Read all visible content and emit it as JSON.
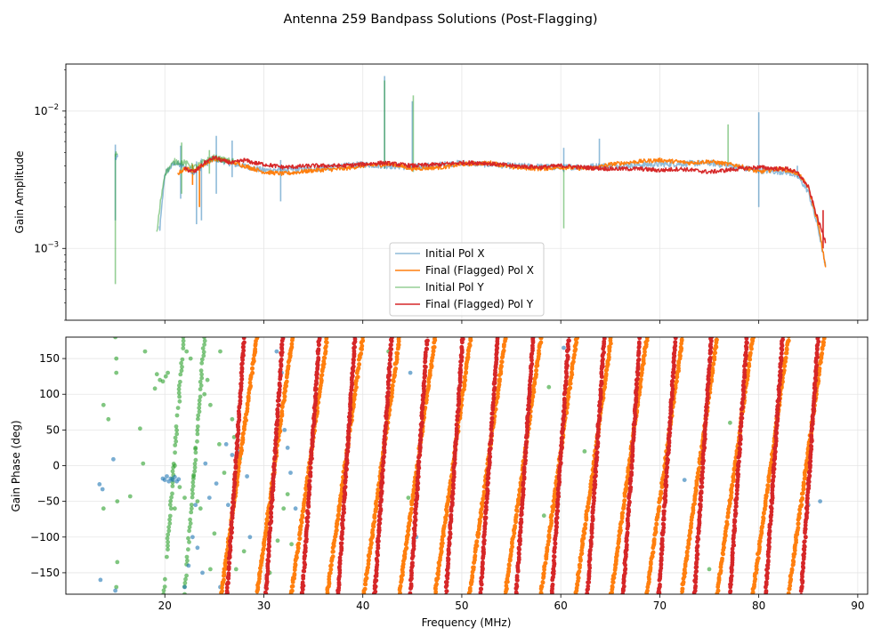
{
  "chart_data": {
    "type": "line",
    "title": "Antenna 259 Bandpass Solutions (Post-Flagging)",
    "xlabel": "Frequency (MHz)",
    "xlim": [
      10,
      91
    ],
    "xticks": [
      20,
      30,
      40,
      50,
      60,
      70,
      80,
      90
    ],
    "xtick_labels": [
      "20",
      "30",
      "40",
      "50",
      "60",
      "70",
      "80",
      "90"
    ],
    "colors": {
      "initial_x": "#1f77b4",
      "final_x": "#ff7f0e",
      "initial_y": "#2ca02c",
      "final_y": "#d62728"
    },
    "amplitude_panel": {
      "ylabel": "Gain Amplitude",
      "yscale": "log",
      "ylim": [
        0.0003,
        0.022
      ],
      "ytick_labels": [
        {
          "value": 0.001,
          "base": "10",
          "exponent": "−3"
        },
        {
          "value": 0.01,
          "base": "10",
          "exponent": "−2"
        }
      ],
      "legend": {
        "location": "lower-center",
        "entries": [
          "Initial Pol X",
          "Final (Flagged) Pol X",
          "Initial Pol Y",
          "Final (Flagged) Pol Y"
        ]
      },
      "series": [
        {
          "name": "Initial Pol X",
          "x": [
            15,
            15.2,
            19.5,
            20,
            21,
            22,
            23,
            24,
            25,
            26,
            27,
            28,
            30,
            35,
            40,
            45,
            50,
            55,
            60,
            65,
            70,
            75,
            80,
            83,
            84,
            85,
            86,
            86.8
          ],
          "y": [
            0.0045,
            0.0046,
            0.0014,
            0.0035,
            0.0042,
            0.0039,
            0.0036,
            0.0041,
            0.0045,
            0.0043,
            0.0041,
            0.004,
            0.0037,
            0.0038,
            0.0041,
            0.0039,
            0.0042,
            0.004,
            0.0039,
            0.004,
            0.0041,
            0.0042,
            0.0037,
            0.0036,
            0.0033,
            0.0026,
            0.0014,
            0.0007
          ],
          "spikes": [
            {
              "x": 15,
              "top": 0.0057,
              "bottom": 0.0016
            },
            {
              "x": 21.6,
              "top": 0.0056,
              "bottom": 0.0023
            },
            {
              "x": 23.2,
              "top": 0.0043,
              "bottom": 0.0015
            },
            {
              "x": 23.7,
              "top": 0.0045,
              "bottom": 0.0016
            },
            {
              "x": 25.2,
              "top": 0.0066,
              "bottom": 0.0025
            },
            {
              "x": 26.8,
              "top": 0.0061,
              "bottom": 0.0033
            },
            {
              "x": 31.7,
              "top": 0.0044,
              "bottom": 0.0022
            },
            {
              "x": 42.2,
              "top": 0.018,
              "bottom": 0.0038
            },
            {
              "x": 45.0,
              "top": 0.0118,
              "bottom": 0.0038
            },
            {
              "x": 60.3,
              "top": 0.0054,
              "bottom": 0.0036
            },
            {
              "x": 63.9,
              "top": 0.0063,
              "bottom": 0.0038
            },
            {
              "x": 80.0,
              "top": 0.0098,
              "bottom": 0.002
            },
            {
              "x": 83.9,
              "top": 0.004,
              "bottom": 0.0033
            }
          ]
        },
        {
          "name": "Final (Flagged) Pol X",
          "x": [
            21.3,
            22,
            23,
            24,
            25,
            26,
            27,
            28,
            29,
            30,
            32,
            35,
            38,
            40,
            43,
            45,
            48,
            50,
            53,
            55,
            58,
            60,
            63,
            65,
            68,
            70,
            73,
            75,
            78,
            80,
            82,
            83,
            84,
            85,
            86,
            86.8
          ],
          "y": [
            0.0035,
            0.0038,
            0.0037,
            0.0041,
            0.0045,
            0.0044,
            0.0042,
            0.004,
            0.0038,
            0.0036,
            0.0035,
            0.0037,
            0.0038,
            0.004,
            0.0041,
            0.0038,
            0.0039,
            0.0041,
            0.0042,
            0.0039,
            0.0038,
            0.0039,
            0.0038,
            0.0041,
            0.0043,
            0.0044,
            0.0042,
            0.0043,
            0.004,
            0.0036,
            0.0038,
            0.0037,
            0.0035,
            0.0028,
            0.0015,
            0.0007
          ],
          "spikes": [
            {
              "x": 23.5,
              "top": 0.0041,
              "bottom": 0.002
            },
            {
              "x": 22.8,
              "top": 0.0041,
              "bottom": 0.0029
            }
          ]
        },
        {
          "name": "Initial Pol Y",
          "x": [
            15,
            15.2,
            19.2,
            19.6,
            20,
            20.5,
            21,
            22,
            23,
            24,
            25,
            26,
            27
          ],
          "y": [
            0.0048,
            0.0049,
            0.0013,
            0.0023,
            0.0035,
            0.0039,
            0.0043,
            0.0042,
            0.0039,
            0.0043,
            0.0046,
            0.0044,
            0.0043
          ],
          "spikes": [
            {
              "x": 15,
              "top": 0.0049,
              "bottom": 0.00055
            },
            {
              "x": 21.7,
              "top": 0.0059,
              "bottom": 0.0025
            },
            {
              "x": 24.5,
              "top": 0.0052,
              "bottom": 0.0035
            },
            {
              "x": 42.2,
              "top": 0.0167,
              "bottom": 0.0038
            },
            {
              "x": 45.1,
              "top": 0.013,
              "bottom": 0.0036
            },
            {
              "x": 60.3,
              "top": 0.0038,
              "bottom": 0.0014
            },
            {
              "x": 76.9,
              "top": 0.008,
              "bottom": 0.0041
            }
          ]
        },
        {
          "name": "Final (Flagged) Pol Y",
          "x": [
            22,
            23,
            24,
            25,
            26,
            27,
            28,
            29,
            30,
            32,
            35,
            38,
            40,
            42,
            45,
            48,
            50,
            52,
            55,
            58,
            60,
            62,
            65,
            68,
            70,
            72,
            75,
            78,
            80,
            82,
            83,
            84,
            85,
            86,
            86.8
          ],
          "y": [
            0.0038,
            0.0036,
            0.0042,
            0.0046,
            0.0043,
            0.0042,
            0.0044,
            0.0042,
            0.0041,
            0.0039,
            0.004,
            0.004,
            0.0041,
            0.0042,
            0.004,
            0.0041,
            0.0042,
            0.0042,
            0.004,
            0.0039,
            0.004,
            0.0039,
            0.0038,
            0.0038,
            0.0037,
            0.0038,
            0.0036,
            0.0038,
            0.0039,
            0.0038,
            0.0038,
            0.0035,
            0.0028,
            0.0016,
            0.0011
          ],
          "spikes": [
            {
              "x": 86.5,
              "top": 0.0019,
              "bottom": 0.001
            }
          ]
        }
      ]
    },
    "phase_panel": {
      "ylabel": "Gain Phase (deg)",
      "ylim": [
        -180,
        180
      ],
      "yticks": [
        -150,
        -100,
        -50,
        0,
        50,
        100,
        150
      ],
      "ytick_labels": [
        "−150",
        "−100",
        "−50",
        "0",
        "50",
        "100",
        "150"
      ],
      "scatter_type": "phase-wrap",
      "series": [
        {
          "name": "Final (Flagged) Pol X",
          "wrap_x_at_minus180": [
            29.3,
            32.9,
            36.4,
            40.0,
            43.7,
            47.3,
            50.9,
            54.4,
            58.0,
            61.6,
            65.1,
            68.7,
            72.3,
            75.8,
            79.4,
            83.0,
            86.6
          ],
          "wrap_width_mhz": 3.6,
          "x_range": [
            24.6,
            87
          ]
        },
        {
          "name": "Final (Flagged) Pol Y",
          "wrap_x_at_minus180": [
            28.0,
            31.9,
            35.6,
            39.2,
            42.9,
            46.5,
            50.1,
            53.6,
            57.2,
            60.8,
            64.4,
            68.0,
            71.6,
            75.2,
            78.8,
            82.4,
            86.0
          ],
          "wrap_width_mhz": 1.7,
          "x_range": [
            22,
            87
          ]
        },
        {
          "name": "Initial Pol Y",
          "scatter_points": [
            [
              13.8,
              85
            ],
            [
              13.8,
              -60
            ],
            [
              14.3,
              65
            ],
            [
              15.0,
              180
            ],
            [
              15.1,
              150
            ],
            [
              15.1,
              130
            ],
            [
              15.2,
              -50
            ],
            [
              15.2,
              -135
            ],
            [
              15.1,
              -170
            ],
            [
              16.5,
              -43
            ],
            [
              17.5,
              52
            ],
            [
              17.8,
              3
            ],
            [
              18.0,
              160
            ],
            [
              19.0,
              108
            ],
            [
              19.2,
              128
            ],
            [
              19.5,
              120
            ],
            [
              19.8,
              118
            ],
            [
              20.1,
              125
            ],
            [
              20.3,
              130
            ],
            [
              21.0,
              0
            ],
            [
              21.0,
              -60
            ],
            [
              21.5,
              90
            ],
            [
              21.5,
              -30
            ],
            [
              22.0,
              -45
            ],
            [
              22.2,
              160
            ],
            [
              22.6,
              150
            ],
            [
              22.9,
              -15
            ],
            [
              23.1,
              25
            ],
            [
              23.3,
              -50
            ],
            [
              23.6,
              -60
            ],
            [
              24.0,
              100
            ],
            [
              24.3,
              120
            ],
            [
              24.6,
              85
            ],
            [
              24.6,
              -145
            ],
            [
              25.0,
              -95
            ],
            [
              25.5,
              30
            ],
            [
              25.6,
              160
            ],
            [
              26.0,
              -10
            ],
            [
              26.8,
              65
            ],
            [
              27.0,
              40
            ],
            [
              27.2,
              -145
            ],
            [
              27.6,
              10
            ],
            [
              28.0,
              -120
            ],
            [
              30.6,
              -150
            ],
            [
              31.4,
              -105
            ],
            [
              32.0,
              -60
            ],
            [
              32.4,
              -40
            ],
            [
              32.8,
              -110
            ],
            [
              42.6,
              160
            ],
            [
              44.6,
              -45
            ],
            [
              58.3,
              -70
            ],
            [
              58.8,
              110
            ],
            [
              62.4,
              20
            ],
            [
              75.0,
              -145
            ],
            [
              77.1,
              60
            ]
          ],
          "green_wrap_x_at_minus180": [
            19.9,
            22.0
          ],
          "green_wrap_width_mhz": 2.0
        },
        {
          "name": "Initial Pol X",
          "scatter_points": [
            [
              13.4,
              -26
            ],
            [
              13.7,
              -33
            ],
            [
              13.5,
              -160
            ],
            [
              14.8,
              9
            ],
            [
              15.0,
              -175
            ],
            [
              19.8,
              -18
            ],
            [
              20.0,
              -20
            ],
            [
              20.2,
              -15
            ],
            [
              20.4,
              -22
            ],
            [
              20.6,
              -18
            ],
            [
              20.8,
              -20
            ],
            [
              21.0,
              -16
            ],
            [
              21.2,
              -22
            ],
            [
              21.4,
              -19
            ],
            [
              22.0,
              -170
            ],
            [
              22.4,
              -140
            ],
            [
              22.8,
              -100
            ],
            [
              23.1,
              -55
            ],
            [
              23.3,
              -115
            ],
            [
              23.8,
              -150
            ],
            [
              24.1,
              3
            ],
            [
              24.5,
              -45
            ],
            [
              25.2,
              -25
            ],
            [
              25.6,
              -170
            ],
            [
              26.2,
              30
            ],
            [
              26.4,
              -55
            ],
            [
              26.8,
              15
            ],
            [
              27.4,
              20
            ],
            [
              28.3,
              -15
            ],
            [
              28.6,
              -100
            ],
            [
              31.3,
              160
            ],
            [
              31.8,
              130
            ],
            [
              32.1,
              50
            ],
            [
              32.4,
              25
            ],
            [
              32.7,
              -10
            ],
            [
              33.2,
              -60
            ],
            [
              44.8,
              130
            ],
            [
              45.4,
              -100
            ],
            [
              60.3,
              165
            ],
            [
              72.5,
              -20
            ],
            [
              85.0,
              -55
            ],
            [
              86.2,
              -50
            ]
          ]
        }
      ]
    }
  }
}
